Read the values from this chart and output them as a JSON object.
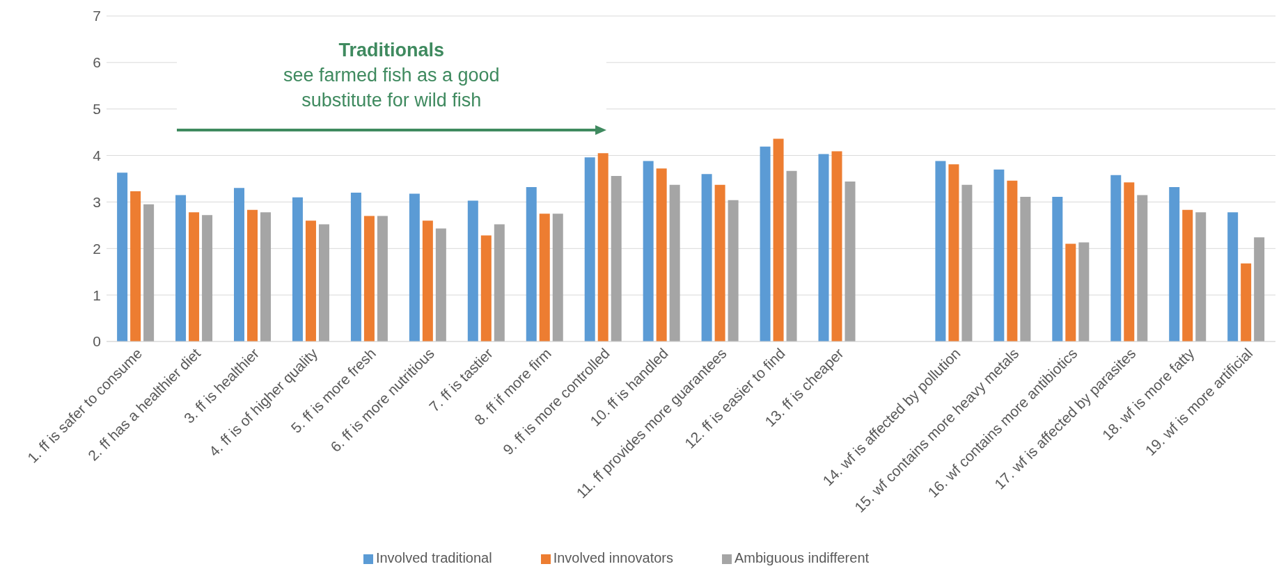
{
  "chart_data": {
    "type": "bar",
    "categories": [
      "1.   ff is safer to consume",
      "2.  ff has a healthier diet",
      "3.   ff is healthier",
      "4.   ff is of higher quality",
      "5.    ff is more fresh",
      "6.   ff is more nutritious",
      "7.   ff is tastier",
      "8.   ff if more firm",
      "9.   ff is more controlled",
      "10. ff is handled",
      "11. ff provides more guarantees",
      "12. ff is easier to find",
      "13. ff is cheaper",
      null,
      "14. wf is affected by pollution",
      "15. wf contains more heavy metals",
      "16. wf contains more antibiotics",
      "17. wf is affected by parasites",
      "18. wf is more fatty",
      "19. wf is more artificial"
    ],
    "series": [
      {
        "name": "Involved traditional",
        "color": "#5b9bd5",
        "values": [
          3.63,
          3.15,
          3.3,
          3.1,
          3.2,
          3.18,
          3.03,
          3.32,
          3.96,
          3.88,
          3.6,
          4.19,
          4.03,
          null,
          3.88,
          3.7,
          3.11,
          3.58,
          3.32,
          2.78
        ]
      },
      {
        "name": "Involved innovators",
        "color": "#ed7d31",
        "values": [
          3.23,
          2.78,
          2.83,
          2.6,
          2.7,
          2.6,
          2.28,
          2.75,
          4.05,
          3.72,
          3.37,
          4.36,
          4.09,
          null,
          3.81,
          3.46,
          2.1,
          3.42,
          2.83,
          1.68
        ]
      },
      {
        "name": "Ambiguous indifferent",
        "color": "#a5a5a5",
        "values": [
          2.95,
          2.72,
          2.78,
          2.52,
          2.7,
          2.43,
          2.52,
          2.75,
          3.56,
          3.37,
          3.04,
          3.67,
          3.44,
          null,
          3.37,
          3.11,
          2.13,
          3.15,
          2.78,
          2.24
        ]
      }
    ],
    "ylim": [
      0,
      7
    ],
    "yticks": [
      0,
      1,
      2,
      3,
      4,
      5,
      6,
      7
    ],
    "grid": "y",
    "legend": "bottom",
    "annotations": [
      "Traditionals",
      "see farmed fish as a good substitute for wild fish"
    ]
  }
}
